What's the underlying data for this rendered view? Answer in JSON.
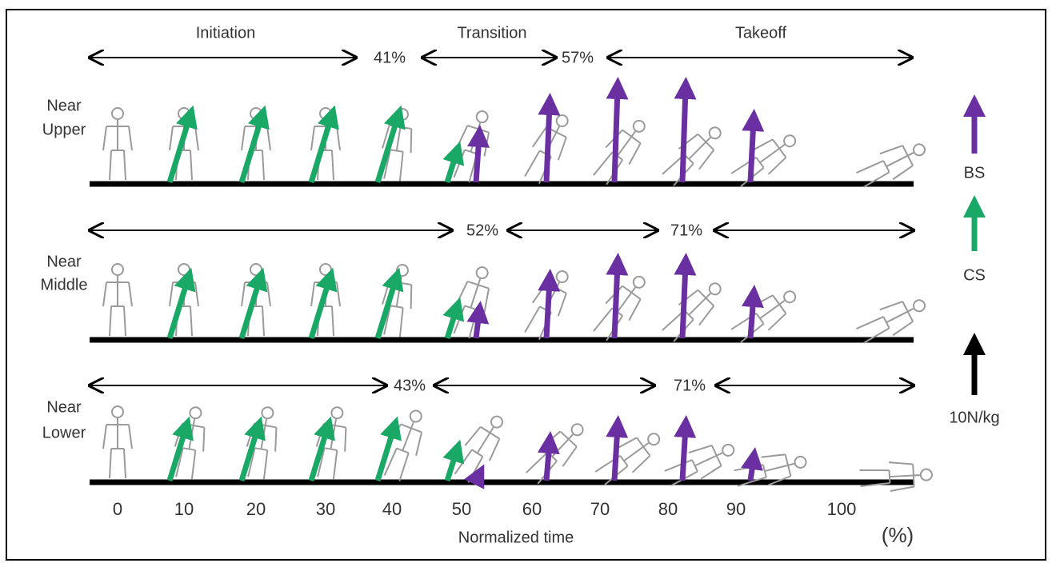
{
  "phases": [
    "Initiation",
    "Transition",
    "Takeoff"
  ],
  "rows": [
    {
      "label": [
        "Near",
        "Upper"
      ],
      "markers": [
        "41%",
        "57%"
      ]
    },
    {
      "label": [
        "Near",
        "Middle"
      ],
      "markers": [
        "52%",
        "71%"
      ]
    },
    {
      "label": [
        "Near",
        "Lower"
      ],
      "markers": [
        "43%",
        "71%"
      ]
    }
  ],
  "time_axis": {
    "ticks": [
      "0",
      "10",
      "20",
      "30",
      "40",
      "50",
      "60",
      "70",
      "80",
      "90",
      "100"
    ],
    "label": "Normalized time",
    "unit": "(%)"
  },
  "legend": {
    "bs": "BS",
    "cs": "CS",
    "scale": "10N/kg"
  }
}
